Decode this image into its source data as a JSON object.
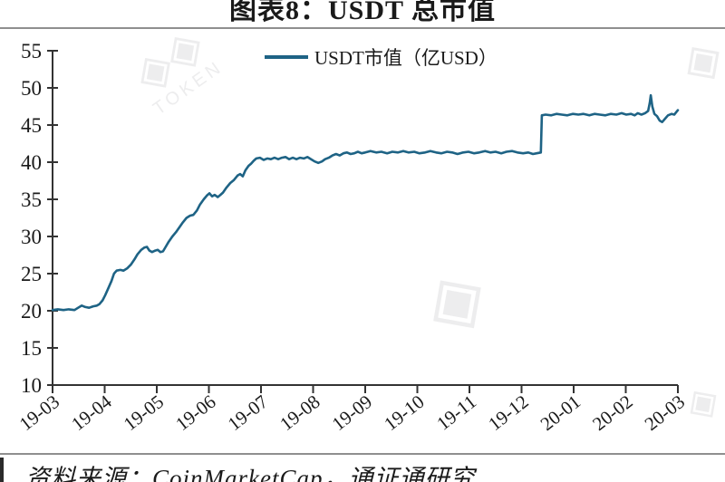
{
  "page": {
    "title": "图表8：USDT 总市值",
    "source_note": "资料来源：CoinMarketCap，通证通研究",
    "watermarks": [
      {
        "glyph": "◈◈",
        "label": "TOKEN"
      },
      {
        "glyph": "◈",
        "label": ""
      },
      {
        "glyph": "◈",
        "label": ""
      },
      {
        "glyph": "◈",
        "label": ""
      }
    ]
  },
  "colors": {
    "line": "#1e6385",
    "axis": "#333333",
    "tick_text": "#1a1a1a",
    "divider": "#8f8f8f",
    "watermark": "#ededee"
  },
  "chart_data": {
    "type": "line",
    "title": "图表8：USDT 总市值",
    "xlabel": "",
    "ylabel": "",
    "grid": false,
    "legend": {
      "position": "top-center",
      "entries": [
        "USDT市值（亿USD）"
      ]
    },
    "x_axis": {
      "tick_labels": [
        "19-03",
        "19-04",
        "19-05",
        "19-06",
        "19-07",
        "19-08",
        "19-09",
        "19-10",
        "19-11",
        "19-12",
        "20-01",
        "20-02",
        "20-03"
      ],
      "rotation_deg": -38
    },
    "y_axis": {
      "ticks": [
        10,
        15,
        20,
        25,
        30,
        35,
        40,
        45,
        50,
        55
      ],
      "range": [
        10,
        55
      ]
    },
    "series": [
      {
        "name": "USDT市值（亿USD）",
        "color": "#1e6385",
        "points_t_months_vs_value": [
          [
            0,
            20.1
          ],
          [
            0.1,
            20.2
          ],
          [
            0.21,
            20.1
          ],
          [
            0.31,
            20.2
          ],
          [
            0.42,
            20.1
          ],
          [
            0.49,
            20.4
          ],
          [
            0.56,
            20.7
          ],
          [
            0.63,
            20.5
          ],
          [
            0.7,
            20.4
          ],
          [
            0.78,
            20.6
          ],
          [
            0.85,
            20.7
          ],
          [
            0.9,
            20.9
          ],
          [
            0.96,
            21.4
          ],
          [
            1.01,
            22.1
          ],
          [
            1.08,
            23.2
          ],
          [
            1.13,
            24
          ],
          [
            1.18,
            25
          ],
          [
            1.23,
            25.4
          ],
          [
            1.3,
            25.5
          ],
          [
            1.36,
            25.4
          ],
          [
            1.43,
            25.7
          ],
          [
            1.5,
            26.2
          ],
          [
            1.57,
            26.9
          ],
          [
            1.63,
            27.6
          ],
          [
            1.7,
            28.2
          ],
          [
            1.76,
            28.5
          ],
          [
            1.81,
            28.6
          ],
          [
            1.86,
            28.1
          ],
          [
            1.91,
            27.9
          ],
          [
            1.97,
            28.1
          ],
          [
            2.02,
            28.2
          ],
          [
            2.07,
            27.9
          ],
          [
            2.12,
            28
          ],
          [
            2.17,
            28.6
          ],
          [
            2.23,
            29.3
          ],
          [
            2.3,
            30
          ],
          [
            2.37,
            30.6
          ],
          [
            2.43,
            31.2
          ],
          [
            2.5,
            31.9
          ],
          [
            2.57,
            32.5
          ],
          [
            2.64,
            32.8
          ],
          [
            2.7,
            32.9
          ],
          [
            2.77,
            33.5
          ],
          [
            2.83,
            34.3
          ],
          [
            2.9,
            35
          ],
          [
            2.96,
            35.5
          ],
          [
            3.01,
            35.8
          ],
          [
            3.06,
            35.4
          ],
          [
            3.11,
            35.6
          ],
          [
            3.17,
            35.3
          ],
          [
            3.22,
            35.6
          ],
          [
            3.27,
            35.9
          ],
          [
            3.34,
            36.6
          ],
          [
            3.41,
            37.2
          ],
          [
            3.48,
            37.6
          ],
          [
            3.55,
            38.2
          ],
          [
            3.6,
            38.4
          ],
          [
            3.65,
            38.1
          ],
          [
            3.7,
            38.9
          ],
          [
            3.76,
            39.5
          ],
          [
            3.81,
            39.8
          ],
          [
            3.86,
            40.2
          ],
          [
            3.91,
            40.5
          ],
          [
            3.98,
            40.6
          ],
          [
            4.05,
            40.3
          ],
          [
            4.12,
            40.5
          ],
          [
            4.19,
            40.4
          ],
          [
            4.26,
            40.6
          ],
          [
            4.33,
            40.4
          ],
          [
            4.4,
            40.6
          ],
          [
            4.47,
            40.7
          ],
          [
            4.54,
            40.4
          ],
          [
            4.61,
            40.6
          ],
          [
            4.68,
            40.4
          ],
          [
            4.75,
            40.6
          ],
          [
            4.82,
            40.5
          ],
          [
            4.89,
            40.7
          ],
          [
            4.96,
            40.4
          ],
          [
            5.03,
            40.1
          ],
          [
            5.1,
            39.9
          ],
          [
            5.17,
            40.1
          ],
          [
            5.23,
            40.4
          ],
          [
            5.3,
            40.6
          ],
          [
            5.37,
            40.9
          ],
          [
            5.44,
            41.1
          ],
          [
            5.51,
            40.9
          ],
          [
            5.58,
            41.2
          ],
          [
            5.65,
            41.3
          ],
          [
            5.72,
            41.1
          ],
          [
            5.79,
            41.2
          ],
          [
            5.86,
            41.4
          ],
          [
            5.93,
            41.2
          ],
          [
            6,
            41.3
          ],
          [
            6.1,
            41.5
          ],
          [
            6.21,
            41.3
          ],
          [
            6.31,
            41.4
          ],
          [
            6.42,
            41.2
          ],
          [
            6.52,
            41.4
          ],
          [
            6.63,
            41.3
          ],
          [
            6.73,
            41.5
          ],
          [
            6.83,
            41.3
          ],
          [
            6.94,
            41.4
          ],
          [
            7.04,
            41.2
          ],
          [
            7.15,
            41.3
          ],
          [
            7.25,
            41.5
          ],
          [
            7.36,
            41.3
          ],
          [
            7.46,
            41.2
          ],
          [
            7.57,
            41.4
          ],
          [
            7.67,
            41.3
          ],
          [
            7.77,
            41.1
          ],
          [
            7.88,
            41.3
          ],
          [
            7.98,
            41.4
          ],
          [
            8.09,
            41.2
          ],
          [
            8.19,
            41.3
          ],
          [
            8.3,
            41.5
          ],
          [
            8.4,
            41.3
          ],
          [
            8.5,
            41.4
          ],
          [
            8.61,
            41.2
          ],
          [
            8.71,
            41.4
          ],
          [
            8.82,
            41.5
          ],
          [
            8.92,
            41.3
          ],
          [
            9.03,
            41.2
          ],
          [
            9.13,
            41.3
          ],
          [
            9.22,
            41.1
          ],
          [
            9.29,
            41.2
          ],
          [
            9.37,
            41.3
          ],
          [
            9.39,
            46.3
          ],
          [
            9.46,
            46.4
          ],
          [
            9.57,
            46.3
          ],
          [
            9.67,
            46.5
          ],
          [
            9.77,
            46.4
          ],
          [
            9.88,
            46.3
          ],
          [
            9.98,
            46.5
          ],
          [
            10.09,
            46.4
          ],
          [
            10.19,
            46.5
          ],
          [
            10.3,
            46.3
          ],
          [
            10.4,
            46.5
          ],
          [
            10.5,
            46.4
          ],
          [
            10.61,
            46.3
          ],
          [
            10.71,
            46.5
          ],
          [
            10.82,
            46.4
          ],
          [
            10.92,
            46.6
          ],
          [
            11.01,
            46.4
          ],
          [
            11.1,
            46.5
          ],
          [
            11.17,
            46.3
          ],
          [
            11.23,
            46.6
          ],
          [
            11.3,
            46.4
          ],
          [
            11.37,
            46.6
          ],
          [
            11.43,
            46.9
          ],
          [
            11.46,
            48
          ],
          [
            11.48,
            49
          ],
          [
            11.51,
            47.5
          ],
          [
            11.55,
            46.5
          ],
          [
            11.6,
            46.2
          ],
          [
            11.65,
            45.6
          ],
          [
            11.7,
            45.4
          ],
          [
            11.76,
            45.9
          ],
          [
            11.81,
            46.3
          ],
          [
            11.88,
            46.5
          ],
          [
            11.93,
            46.4
          ],
          [
            12,
            47
          ]
        ]
      }
    ]
  }
}
